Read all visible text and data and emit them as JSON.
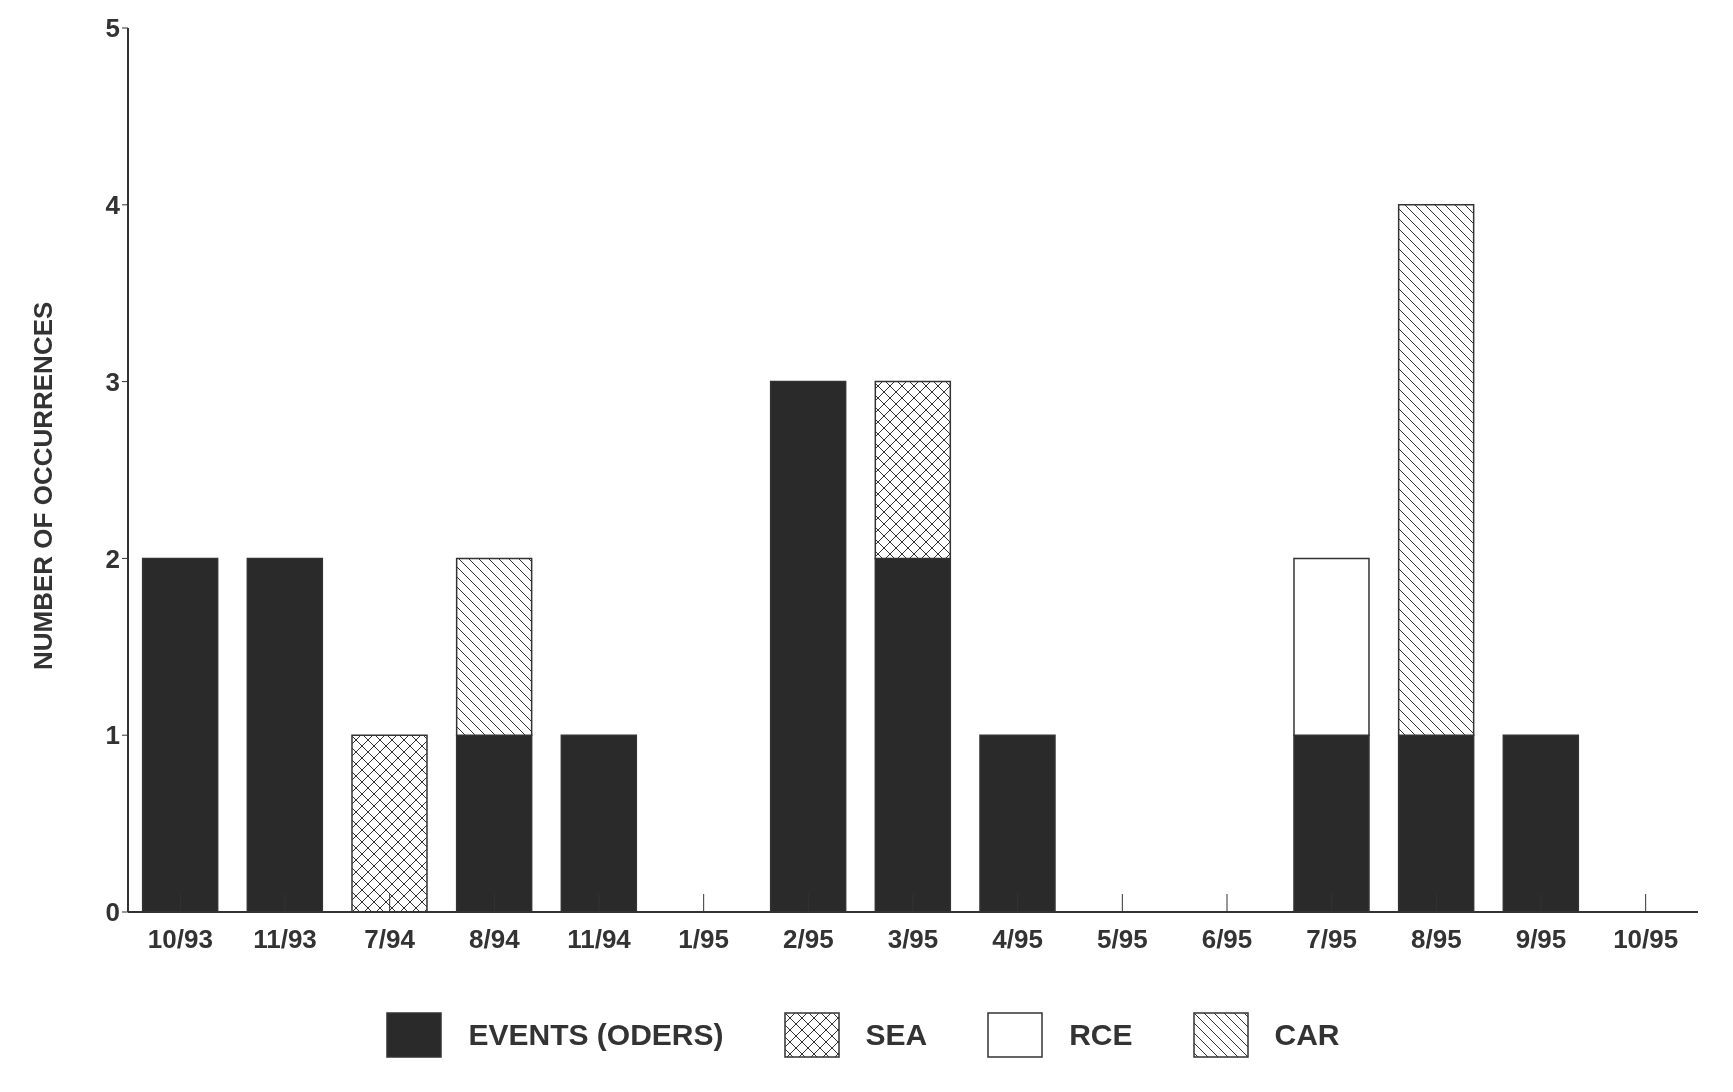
{
  "chart_data": {
    "type": "bar",
    "stacked": true,
    "ylabel": "NUMBER OF OCCURRENCES",
    "categories": [
      "10/93",
      "11/93",
      "7/94",
      "8/94",
      "11/94",
      "1/95",
      "2/95",
      "3/95",
      "4/95",
      "5/95",
      "6/95",
      "7/95",
      "8/95",
      "9/95",
      "10/95"
    ],
    "series": [
      {
        "name": "EVENTS (ODERS)",
        "color": "#2a2a2a",
        "values": [
          2,
          2,
          null,
          1,
          1,
          null,
          3,
          2,
          1,
          null,
          null,
          1,
          1,
          1,
          null
        ]
      },
      {
        "name": "SEA",
        "color": "#333333",
        "values": [
          null,
          null,
          1,
          null,
          null,
          null,
          null,
          1,
          null,
          null,
          null,
          null,
          null,
          null,
          null
        ]
      },
      {
        "name": "RCE",
        "color": "#ffffff",
        "values": [
          null,
          null,
          null,
          null,
          null,
          null,
          null,
          null,
          null,
          null,
          null,
          1,
          null,
          null,
          null
        ]
      },
      {
        "name": "CAR",
        "color": "#333333",
        "values": [
          null,
          null,
          null,
          1,
          null,
          null,
          null,
          null,
          null,
          null,
          null,
          null,
          3,
          null,
          null
        ]
      }
    ],
    "ylim": [
      0,
      5
    ],
    "yticks": [
      0,
      1,
      2,
      3,
      4,
      5
    ],
    "grid": false,
    "legend": "bottom"
  }
}
